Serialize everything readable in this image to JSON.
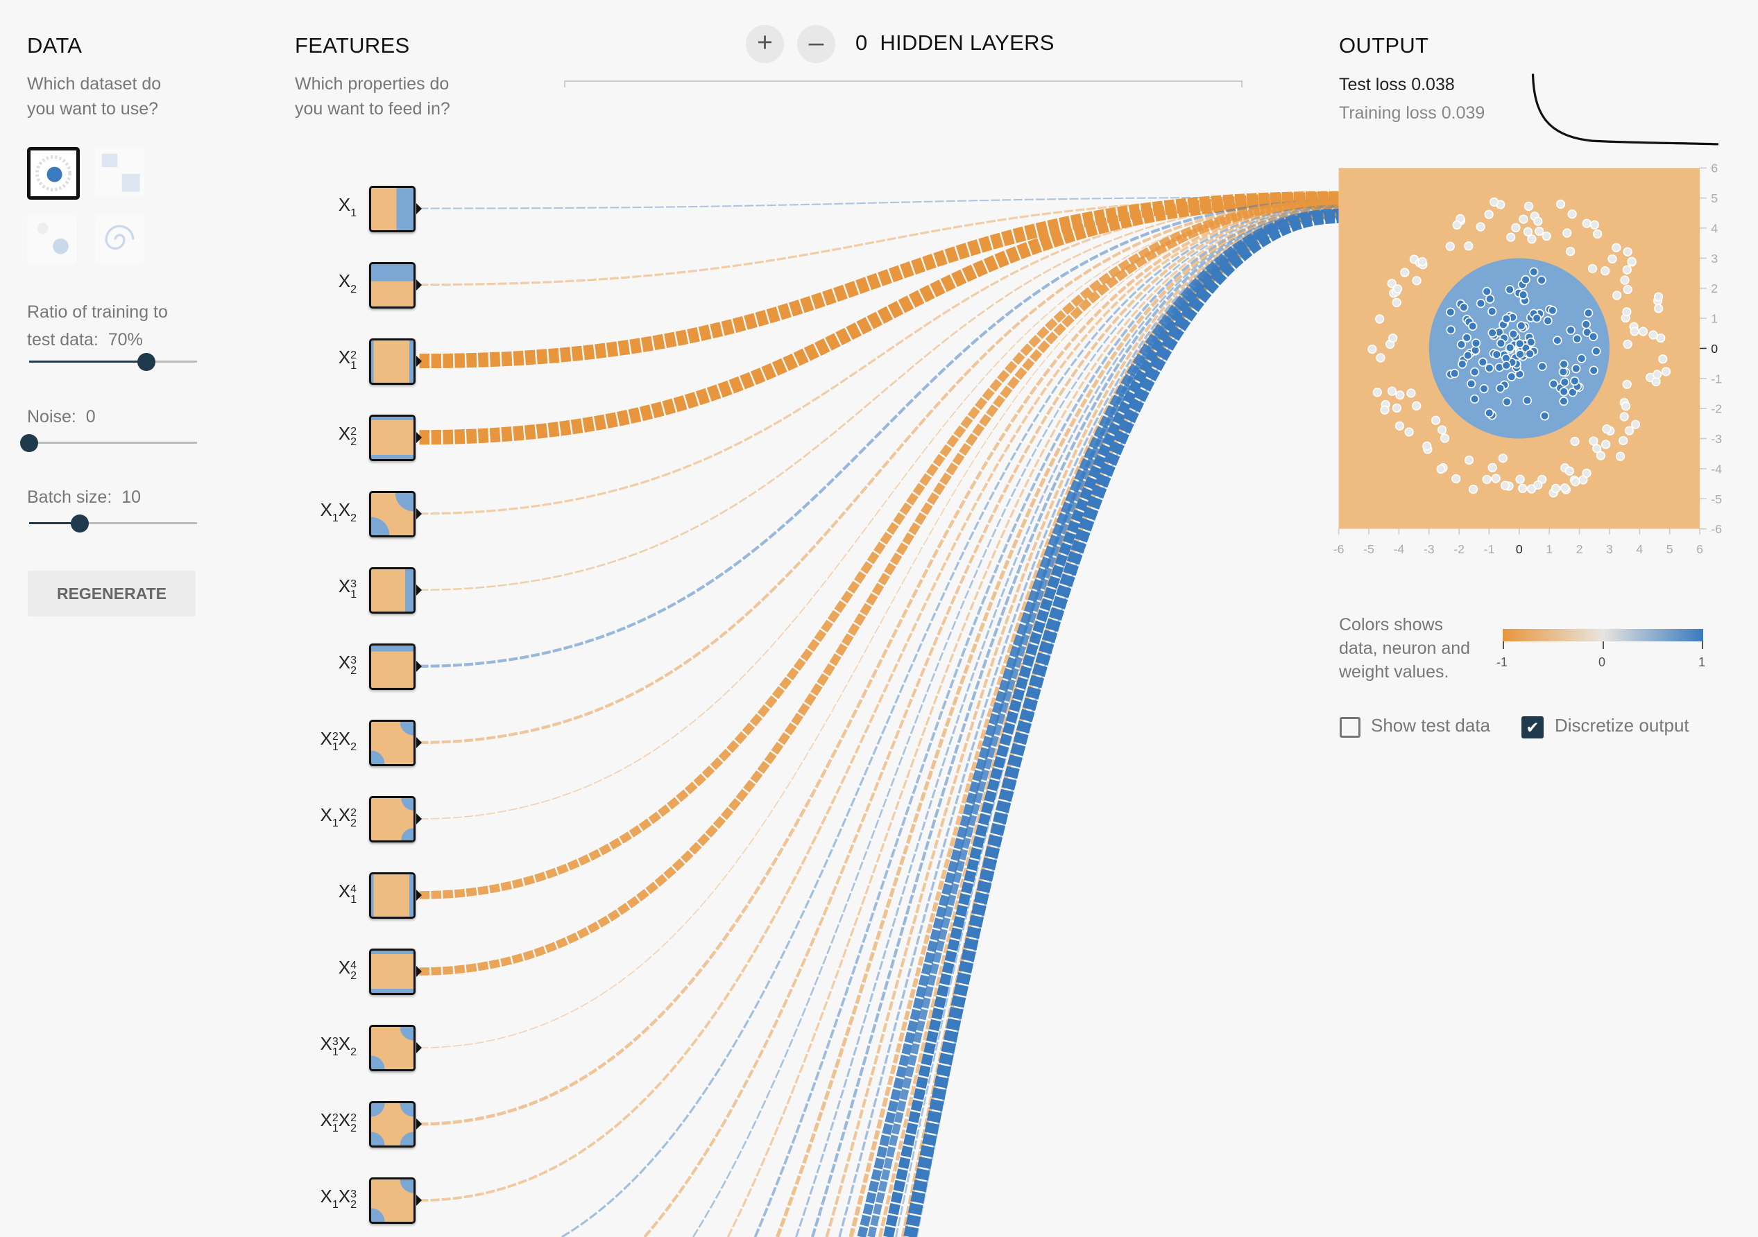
{
  "data_panel": {
    "title": "DATA",
    "subtitle_1": "Which dataset do",
    "subtitle_2": "you want to use?",
    "datasets": [
      "circle",
      "xor",
      "gaussian",
      "spiral"
    ],
    "selected_dataset": "circle",
    "ratio_label_1": "Ratio of training to",
    "ratio_label_2": "test data:",
    "ratio_value": "70%",
    "ratio_percent": 70,
    "noise_label": "Noise:",
    "noise_value": "0",
    "noise_percent": 0,
    "batch_label": "Batch size:",
    "batch_value": "10",
    "batch_fraction": 0.3,
    "regenerate": "REGENERATE"
  },
  "features_panel": {
    "title": "FEATURES",
    "subtitle_1": "Which properties do",
    "subtitle_2": "you want to feed in?",
    "features": [
      {
        "parts": [
          [
            "X",
            "1",
            ""
          ]
        ],
        "pattern": "x1",
        "weight": 0.1
      },
      {
        "parts": [
          [
            "X",
            "2",
            ""
          ]
        ],
        "pattern": "x2",
        "weight": -0.15
      },
      {
        "parts": [
          [
            "X",
            "1",
            "2"
          ]
        ],
        "pattern": "x1sq",
        "weight": -1.0
      },
      {
        "parts": [
          [
            "X",
            "2",
            "2"
          ]
        ],
        "pattern": "x2sq",
        "weight": -1.0
      },
      {
        "parts": [
          [
            "X",
            "1",
            ""
          ],
          [
            "X",
            "2",
            ""
          ]
        ],
        "pattern": "x1x2",
        "weight": -0.15
      },
      {
        "parts": [
          [
            "X",
            "1",
            "3"
          ]
        ],
        "pattern": "x1cu",
        "weight": -0.12
      },
      {
        "parts": [
          [
            "X",
            "2",
            "3"
          ]
        ],
        "pattern": "x2cu",
        "weight": 0.2
      },
      {
        "parts": [
          [
            "X",
            "1",
            "2"
          ],
          [
            "X",
            "2",
            ""
          ]
        ],
        "pattern": "corner",
        "weight": -0.2
      },
      {
        "parts": [
          [
            "X",
            "1",
            ""
          ],
          [
            "X",
            "2",
            "2"
          ]
        ],
        "pattern": "corner2",
        "weight": -0.08
      },
      {
        "parts": [
          [
            "X",
            "1",
            "4"
          ]
        ],
        "pattern": "x1sq",
        "weight": -0.55
      },
      {
        "parts": [
          [
            "X",
            "2",
            "4"
          ]
        ],
        "pattern": "x2sq",
        "weight": -0.55
      },
      {
        "parts": [
          [
            "X",
            "1",
            "3"
          ],
          [
            "X",
            "2",
            ""
          ]
        ],
        "pattern": "corner",
        "weight": -0.06
      },
      {
        "parts": [
          [
            "X",
            "1",
            "2"
          ],
          [
            "X",
            "2",
            "2"
          ]
        ],
        "pattern": "fourcorner",
        "weight": -0.22
      },
      {
        "parts": [
          [
            "X",
            "1",
            ""
          ],
          [
            "X",
            "2",
            "3"
          ]
        ],
        "pattern": "corner",
        "weight": -0.18
      }
    ],
    "offscreen_weights": [
      0.15,
      -0.2,
      0.12,
      -0.15,
      0.18,
      -0.25,
      0.14,
      0.2,
      -0.2,
      0.16,
      -0.3,
      0.6,
      0.5,
      -0.25,
      0.7,
      0.12,
      -0.3,
      0.9,
      0.15
    ]
  },
  "network": {
    "add_layer": "+",
    "remove_layer": "–",
    "hidden_count": "0",
    "hidden_label": "HIDDEN LAYERS"
  },
  "output_panel": {
    "title": "OUTPUT",
    "test_loss": "Test loss 0.038",
    "training_loss": "Training loss 0.039",
    "x_ticks": [
      "-6",
      "-5",
      "-4",
      "-3",
      "-2",
      "-1",
      "0",
      "1",
      "2",
      "3",
      "4",
      "5",
      "6"
    ],
    "y_ticks": [
      "6",
      "5",
      "4",
      "3",
      "2",
      "1",
      "0",
      "-1",
      "-2",
      "-3",
      "-4",
      "-5",
      "-6"
    ],
    "decision_radius": 3,
    "legend_text_1": "Colors shows",
    "legend_text_2": "data, neuron and",
    "legend_text_3": "weight values.",
    "legend_min": "-1",
    "legend_mid": "0",
    "legend_max": "1",
    "show_test_data": "Show test data",
    "show_test_checked": false,
    "discretize": "Discretize output",
    "discretize_checked": true
  },
  "colors": {
    "orange": "#e8963d",
    "blue": "#3a7abf",
    "bg_orange": "#eebb80",
    "bg_blue": "#7ba7d4",
    "dark": "#1e3a4c"
  }
}
